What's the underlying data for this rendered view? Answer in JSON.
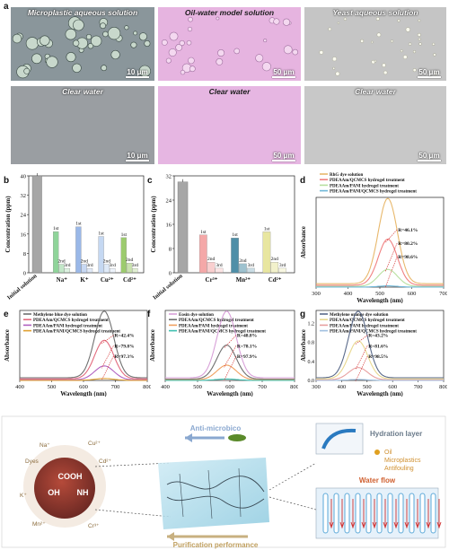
{
  "panel_a": {
    "label": "a",
    "top_row": [
      {
        "title": "Microplastic aqueous solution",
        "scale": "10 μm",
        "color": "#8a969b"
      },
      {
        "title": "Oil-water model solution",
        "scale": "50 μm",
        "color": "#e6b4e0"
      },
      {
        "title": "Yeast aqueous solution",
        "scale": "50 μm",
        "color": "#c5c5c5"
      }
    ],
    "bottom_row": [
      {
        "title": "Clear water",
        "scale": "10 μm",
        "color": "#9a9ea2"
      },
      {
        "title": "Clear water",
        "scale": "50 μm",
        "color": "#e6b6e2"
      },
      {
        "title": "Clear water",
        "scale": "50 μm",
        "color": "#c8c8c8"
      }
    ]
  },
  "panel_b": {
    "label": "b",
    "chart_data": {
      "type": "bar",
      "ylabel": "Concentration (ppm)",
      "ylim": [
        0,
        40
      ],
      "yticks": [
        "0",
        "8",
        "16",
        "24",
        "32",
        "40"
      ],
      "initial": {
        "label": "Initial solution",
        "value": 40,
        "color": "#a6a6a6"
      },
      "groups": [
        {
          "ion": "Na⁺",
          "values": [
            17,
            3.5,
            1.8
          ],
          "color": "#8fd49a"
        },
        {
          "ion": "K⁺",
          "values": [
            19,
            3.5,
            1.8
          ],
          "color": "#9ab8e8"
        },
        {
          "ion": "Cu²⁺",
          "values": [
            15,
            3.5,
            1.8
          ],
          "color": "#c5d8f2"
        },
        {
          "ion": "Cd²⁺",
          "values": [
            14.5,
            4,
            1.8
          ],
          "color": "#9ccb6e"
        }
      ],
      "round_labels": [
        "1st",
        "2nd",
        "3rd"
      ]
    }
  },
  "panel_c": {
    "label": "c",
    "chart_data": {
      "type": "bar",
      "ylabel": "Concentration (ppm)",
      "ylim": [
        0,
        32
      ],
      "yticks": [
        "0",
        "8",
        "16",
        "24",
        "32"
      ],
      "initial": {
        "label": "Initial solution",
        "value": 30,
        "color": "#a6a6a6"
      },
      "groups": [
        {
          "ion": "Cr³⁺",
          "values": [
            12.5,
            3.5,
            1.5
          ],
          "color": "#f4a8a8"
        },
        {
          "ion": "Mn²⁺",
          "values": [
            11.5,
            3,
            1.5
          ],
          "color": "#4f8fa8"
        },
        {
          "ion": "Cd²⁺",
          "values": [
            13.5,
            3.5,
            1.5
          ],
          "color": "#e8e6a0"
        }
      ],
      "round_labels": [
        "1st",
        "2nd",
        "3rd"
      ]
    }
  },
  "panel_d": {
    "label": "d",
    "chart_data": {
      "type": "line",
      "xlabel": "Wavelength (nm)",
      "ylabel": "Absorbance",
      "xlim": [
        300,
        700
      ],
      "xticks": [
        "300",
        "400",
        "500",
        "600",
        "700"
      ],
      "legend": [
        "RhG dye solution",
        "PDEAAm/QCMCS hydrogel treatment",
        "PDEAAm/PANI hydrogel treatment",
        "PDEAAm/PANI/QCMCS hydrogel treatment"
      ],
      "colors": [
        "#e8b86c",
        "#f08080",
        "#b8e0a0",
        "#70b8d8"
      ],
      "peak_x": 525,
      "peaks": [
        1.0,
        0.54,
        0.2,
        0.014
      ],
      "annotations": [
        "R=46.1%",
        "R=80.2%",
        "R=98.6%"
      ]
    }
  },
  "panel_e": {
    "label": "e",
    "chart_data": {
      "type": "line",
      "xlabel": "Wavelength (nm)",
      "ylabel": "Absorbance",
      "xlim": [
        400,
        800
      ],
      "xticks": [
        "400",
        "500",
        "600",
        "700",
        "800"
      ],
      "legend": [
        "Methylene blue dye solution",
        "PDEAAm/QCMCS hydrogel treatment",
        "PDEAAm/PANI hydrogel treatment",
        "PDEAAm/PANI/QCMCS hydrogel treatment"
      ],
      "colors": [
        "#707070",
        "#e26b7e",
        "#b060c0",
        "#e0a030"
      ],
      "peak_x": 665,
      "peaks": [
        1.0,
        0.58,
        0.21,
        0.027
      ],
      "annotations": [
        "R=42.4%",
        "R=79.8%",
        "R=97.3%"
      ]
    }
  },
  "panel_f": {
    "label": "f",
    "chart_data": {
      "type": "line",
      "xlabel": "Wavelength (nm)",
      "ylabel": "Absorbance",
      "xlim": [
        400,
        800
      ],
      "xticks": [
        "400",
        "500",
        "600",
        "700",
        "800"
      ],
      "legend": [
        "Eosin dye solution",
        "PDEAAm/QCMCS hydrogel treatment",
        "PDEAAm/PANI hydrogel treatment",
        "PDEAAm/PANI/QCMCS hydrogel treatment"
      ],
      "colors": [
        "#d8a0d8",
        "#707070",
        "#f0a060",
        "#40c0b0"
      ],
      "peak_x": 590,
      "peaks": [
        1.0,
        0.51,
        0.22,
        0.021
      ],
      "annotations": [
        "R=48.8%",
        "R=78.1%",
        "R=97.9%"
      ]
    }
  },
  "panel_g": {
    "label": "g",
    "chart_data": {
      "type": "line",
      "xlabel": "Wavelength (nm)",
      "ylabel": "Absorbance",
      "xlim": [
        300,
        800
      ],
      "xticks": [
        "300",
        "400",
        "500",
        "600",
        "700",
        "800"
      ],
      "yticks": [
        "0.0",
        "0.4",
        "0.8",
        "1.2"
      ],
      "legend": [
        "Methylene orange dye solution",
        "PDEAAm/QCMCS hydrogel treatment",
        "PDEAAm/PANI hydrogel treatment",
        "PDEAAm/PANI/QCMCS hydrogel treatment"
      ],
      "colors": [
        "#5a6a8a",
        "#e8d890",
        "#e8a0a0",
        "#a0c0e0"
      ],
      "peak_x": 465,
      "peaks": [
        1.4,
        0.8,
        0.26,
        0.02
      ],
      "annotations": [
        "R=43.2%",
        "R=81.6%",
        "R=98.5%"
      ]
    }
  },
  "panel_h": {
    "label": "h",
    "particle_labels": [
      "COOH",
      "OH",
      "NH"
    ],
    "ions": [
      "Dyes",
      "Na⁺",
      "Cu²⁺",
      "Cd²⁺",
      "Cr³⁺",
      "Mn²⁺",
      "K⁺"
    ],
    "anti_microbial": "Anti-microbico",
    "purification": "Purification performance",
    "hydration": "Hydration layer",
    "oil": "Oil",
    "microplastics": "Microplastics",
    "antifouling": "Antifouling",
    "water_flow": "Water flow"
  }
}
